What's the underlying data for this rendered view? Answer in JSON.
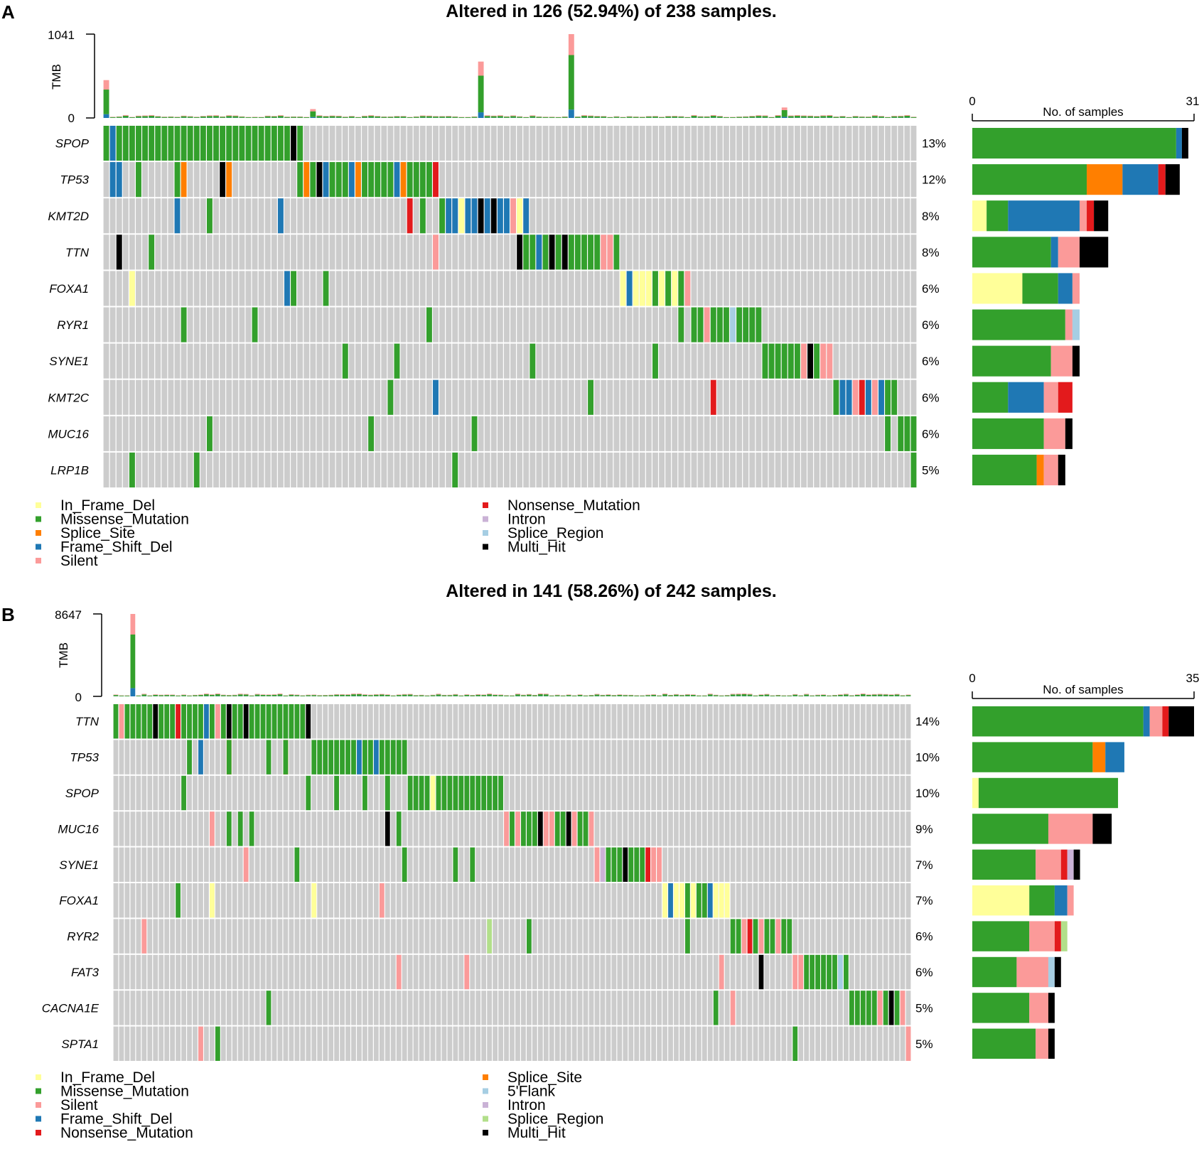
{
  "colors": {
    "In_Frame_Del": "#FFFF99",
    "Missense_Mutation": "#33A02C",
    "Splice_Site": "#FF7F00",
    "Frame_Shift_Del": "#1F78B4",
    "Silent": "#FB9A99",
    "Nonsense_Mutation": "#E31A1C",
    "Intron": "#CAB2D6",
    "Splice_Region": "#A6CEE3",
    "Splice_Region_B": "#B2DF8A",
    "5'Flank": "#A6CEE3",
    "Multi_Hit": "#000000",
    "Background": "#CCCCCC"
  },
  "panels": [
    {
      "letter": "A",
      "title": "Altered in 126 (52.94%) of 238 samples.",
      "tmb_label": "TMB",
      "tmb_max": 1041,
      "tmb_min": 0,
      "bar_axis_label": "No. of samples",
      "bar_axis_max": 31,
      "bar_axis_min": 0,
      "n_cols": 126,
      "genes": [
        {
          "name": "SPOP",
          "pct": "13%",
          "counts": {
            "Missense_Mutation": 28.5,
            "Frame_Shift_Del": 0.8,
            "Multi_Hit": 0.9
          }
        },
        {
          "name": "TP53",
          "pct": "12%",
          "counts": {
            "Missense_Mutation": 16,
            "Splice_Site": 5,
            "Frame_Shift_Del": 5,
            "Nonsense_Mutation": 1,
            "Multi_Hit": 2
          }
        },
        {
          "name": "KMT2D",
          "pct": "8%",
          "counts": {
            "In_Frame_Del": 2,
            "Missense_Mutation": 3,
            "Frame_Shift_Del": 10,
            "Silent": 1,
            "Nonsense_Mutation": 1,
            "Multi_Hit": 2
          }
        },
        {
          "name": "TTN",
          "pct": "8%",
          "counts": {
            "Missense_Mutation": 11,
            "Frame_Shift_Del": 1,
            "Silent": 3,
            "Multi_Hit": 4
          }
        },
        {
          "name": "FOXA1",
          "pct": "6%",
          "counts": {
            "In_Frame_Del": 7,
            "Missense_Mutation": 5,
            "Frame_Shift_Del": 2,
            "Silent": 1
          }
        },
        {
          "name": "RYR1",
          "pct": "6%",
          "counts": {
            "Missense_Mutation": 13,
            "Silent": 1,
            "Splice_Region": 1
          }
        },
        {
          "name": "SYNE1",
          "pct": "6%",
          "counts": {
            "Missense_Mutation": 11,
            "Silent": 3,
            "Multi_Hit": 1
          }
        },
        {
          "name": "KMT2C",
          "pct": "6%",
          "counts": {
            "Missense_Mutation": 5,
            "Frame_Shift_Del": 5,
            "Silent": 2,
            "Nonsense_Mutation": 2
          }
        },
        {
          "name": "MUC16",
          "pct": "6%",
          "counts": {
            "Missense_Mutation": 10,
            "Silent": 3,
            "Multi_Hit": 1
          }
        },
        {
          "name": "LRP1B",
          "pct": "5%",
          "counts": {
            "Missense_Mutation": 9,
            "Splice_Site": 1,
            "Silent": 2,
            "Multi_Hit": 1
          }
        }
      ],
      "tmb_spikes": [
        {
          "col": 0,
          "value": 470
        },
        {
          "col": 32,
          "value": 110
        },
        {
          "col": 58,
          "value": 700
        },
        {
          "col": 72,
          "value": 1041
        },
        {
          "col": 105,
          "value": 130
        }
      ],
      "legend_left": [
        "In_Frame_Del",
        "Missense_Mutation",
        "Splice_Site",
        "Frame_Shift_Del",
        "Silent"
      ],
      "legend_right": [
        "Nonsense_Mutation",
        "Intron",
        "Splice_Region",
        "Multi_Hit"
      ]
    },
    {
      "letter": "B",
      "title": "Altered in 141 (58.26%) of 242 samples.",
      "tmb_label": "TMB",
      "tmb_max": 8647,
      "tmb_min": 0,
      "bar_axis_label": "No. of samples",
      "bar_axis_max": 35,
      "bar_axis_min": 0,
      "n_cols": 141,
      "genes": [
        {
          "name": "TTN",
          "pct": "14%",
          "counts": {
            "Missense_Mutation": 27,
            "Silent": 2,
            "Frame_Shift_Del": 1,
            "Nonsense_Mutation": 1,
            "Multi_Hit": 4
          }
        },
        {
          "name": "TP53",
          "pct": "10%",
          "counts": {
            "Missense_Mutation": 19,
            "Frame_Shift_Del": 3,
            "Splice_Site": 2
          }
        },
        {
          "name": "SPOP",
          "pct": "10%",
          "counts": {
            "In_Frame_Del": 1,
            "Missense_Mutation": 22
          }
        },
        {
          "name": "MUC16",
          "pct": "9%",
          "counts": {
            "Missense_Mutation": 12,
            "Silent": 7,
            "Multi_Hit": 3
          }
        },
        {
          "name": "SYNE1",
          "pct": "7%",
          "counts": {
            "Missense_Mutation": 10,
            "Silent": 4,
            "Nonsense_Mutation": 1,
            "Intron": 1,
            "Multi_Hit": 1
          }
        },
        {
          "name": "FOXA1",
          "pct": "7%",
          "counts": {
            "In_Frame_Del": 9,
            "Missense_Mutation": 4,
            "Silent": 1,
            "Frame_Shift_Del": 2
          }
        },
        {
          "name": "RYR2",
          "pct": "6%",
          "counts": {
            "Missense_Mutation": 9,
            "Silent": 4,
            "Nonsense_Mutation": 1,
            "Splice_Region_B": 1
          }
        },
        {
          "name": "FAT3",
          "pct": "6%",
          "counts": {
            "Missense_Mutation": 7,
            "Silent": 5,
            "5'Flank": 1,
            "Multi_Hit": 1
          }
        },
        {
          "name": "CACNA1E",
          "pct": "5%",
          "counts": {
            "Missense_Mutation": 9,
            "Silent": 3,
            "Multi_Hit": 1
          }
        },
        {
          "name": "SPTA1",
          "pct": "5%",
          "counts": {
            "Missense_Mutation": 10,
            "Silent": 2,
            "Multi_Hit": 1
          }
        }
      ],
      "tmb_spikes": [
        {
          "col": 3,
          "value": 8647
        }
      ],
      "legend_left": [
        "In_Frame_Del",
        "Missense_Mutation",
        "Silent",
        "Frame_Shift_Del",
        "Nonsense_Mutation"
      ],
      "legend_right": [
        "Splice_Site",
        "5'Flank",
        "Intron",
        "Splice_Region",
        "Multi_Hit"
      ]
    }
  ],
  "chart_data": [
    {
      "type": "heatmap",
      "title": "Altered in 126 (52.94%) of 238 samples.",
      "rows": [
        "SPOP",
        "TP53",
        "KMT2D",
        "TTN",
        "FOXA1",
        "RYR1",
        "SYNE1",
        "KMT2C",
        "MUC16",
        "LRP1B"
      ],
      "row_percent": [
        "13%",
        "12%",
        "8%",
        "8%",
        "6%",
        "6%",
        "6%",
        "6%",
        "6%",
        "5%"
      ],
      "tmb_ylim": [
        0,
        1041
      ],
      "bar_xlim": [
        0,
        31
      ],
      "xlabel": "No. of samples",
      "ylabel": "TMB"
    },
    {
      "type": "heatmap",
      "title": "Altered in 141 (58.26%) of 242 samples.",
      "rows": [
        "TTN",
        "TP53",
        "SPOP",
        "MUC16",
        "SYNE1",
        "FOXA1",
        "RYR2",
        "FAT3",
        "CACNA1E",
        "SPTA1"
      ],
      "row_percent": [
        "14%",
        "10%",
        "10%",
        "9%",
        "7%",
        "7%",
        "6%",
        "6%",
        "5%",
        "5%"
      ],
      "tmb_ylim": [
        0,
        8647
      ],
      "bar_xlim": [
        0,
        35
      ],
      "xlabel": "No. of samples",
      "ylabel": "TMB"
    }
  ]
}
